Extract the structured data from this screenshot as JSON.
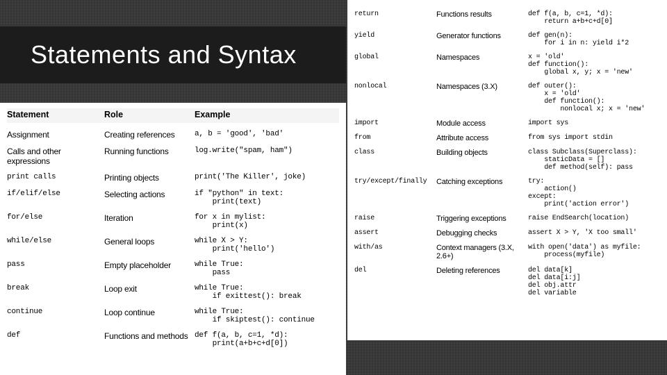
{
  "title": "Statements and Syntax",
  "colors": {
    "page_bg": "#3a3a3a",
    "title_bar_bg": "#1c1c1c",
    "title_text": "#ffffff",
    "panel_bg": "#ffffff",
    "header_bg": "#f4f4f4",
    "text": "#000000"
  },
  "fonts": {
    "title_family": "Trebuchet MS",
    "title_size_pt": 27,
    "body_sans": "Arial",
    "body_mono": "Courier New",
    "body_size_pt": 9
  },
  "header": {
    "statement": "Statement",
    "role": "Role",
    "example": "Example"
  },
  "left_rows": [
    {
      "stmt": "Assignment",
      "mono": false,
      "role": "Creating references",
      "ex": [
        "a, b = 'good', 'bad'"
      ]
    },
    {
      "stmt": "Calls and other expressions",
      "mono": false,
      "role": "Running functions",
      "ex": [
        "log.write(\"spam, ham\")"
      ]
    },
    {
      "stmt": "print calls",
      "mono": true,
      "role": "Printing objects",
      "ex": [
        "print('The Killer', joke)"
      ]
    },
    {
      "stmt": "if/elif/else",
      "mono": true,
      "role": "Selecting actions",
      "ex": [
        "if \"python\" in text:",
        "    print(text)"
      ]
    },
    {
      "stmt": "for/else",
      "mono": true,
      "role": "Iteration",
      "ex": [
        "for x in mylist:",
        "    print(x)"
      ]
    },
    {
      "stmt": "while/else",
      "mono": true,
      "role": "General loops",
      "ex": [
        "while X > Y:",
        "    print('hello')"
      ]
    },
    {
      "stmt": "pass",
      "mono": true,
      "role": "Empty placeholder",
      "ex": [
        "while True:",
        "    pass"
      ]
    },
    {
      "stmt": "break",
      "mono": true,
      "role": "Loop exit",
      "ex": [
        "while True:",
        "    if exittest(): break"
      ]
    },
    {
      "stmt": "continue",
      "mono": true,
      "role": "Loop continue",
      "ex": [
        "while True:",
        "    if skiptest(): continue"
      ]
    },
    {
      "stmt": "def",
      "mono": true,
      "role": "Functions and methods",
      "ex": [
        "def f(a, b, c=1, *d):",
        "    print(a+b+c+d[0])"
      ]
    }
  ],
  "right_rows": [
    {
      "stmt": "return",
      "mono": true,
      "role": "Functions results",
      "ex": [
        "def f(a, b, c=1, *d):",
        "    return a+b+c+d[0]"
      ]
    },
    {
      "stmt": "yield",
      "mono": true,
      "role": "Generator functions",
      "ex": [
        "def gen(n):",
        "    for i in n: yield i*2"
      ]
    },
    {
      "stmt": "global",
      "mono": true,
      "role": "Namespaces",
      "ex": [
        "x = 'old'",
        "def function():",
        "    global x, y; x = 'new'"
      ]
    },
    {
      "stmt": "nonlocal",
      "mono": true,
      "role": "Namespaces (3.X)",
      "ex": [
        "def outer():",
        "    x = 'old'",
        "    def function():",
        "        nonlocal x; x = 'new'"
      ]
    },
    {
      "stmt": "import",
      "mono": true,
      "role": "Module access",
      "ex": [
        "import sys"
      ]
    },
    {
      "stmt": "from",
      "mono": true,
      "role": "Attribute access",
      "ex": [
        "from sys import stdin"
      ]
    },
    {
      "stmt": "class",
      "mono": true,
      "role": "Building objects",
      "ex": [
        "class Subclass(Superclass):",
        "    staticData = []",
        "    def method(self): pass"
      ]
    },
    {
      "stmt": "try/except/finally",
      "mono": true,
      "role": "Catching exceptions",
      "ex": [
        "try:",
        "    action()",
        "except:",
        "    print('action error')"
      ]
    },
    {
      "stmt": "raise",
      "mono": true,
      "role": "Triggering exceptions",
      "ex": [
        "raise EndSearch(location)"
      ]
    },
    {
      "stmt": "assert",
      "mono": true,
      "role": "Debugging checks",
      "ex": [
        "assert X > Y, 'X too small'"
      ]
    },
    {
      "stmt": "with/as",
      "mono": true,
      "role": "Context managers (3.X, 2.6+)",
      "ex": [
        "with open('data') as myfile:",
        "    process(myfile)"
      ]
    },
    {
      "stmt": "del",
      "mono": true,
      "role": "Deleting references",
      "ex": [
        "del data[k]",
        "del data[i:j]",
        "del obj.attr",
        "del variable"
      ]
    }
  ]
}
